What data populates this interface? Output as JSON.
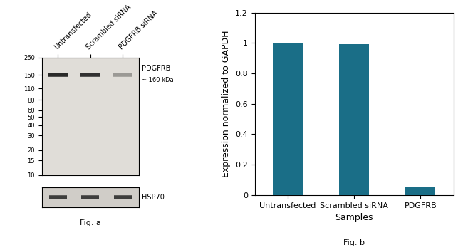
{
  "chart_data": [
    {
      "type": "blot",
      "color": "#e0ddd8",
      "categories": [
        "Untransfected",
        "Scrambled siRNA",
        "PDGFRB siRNA"
      ],
      "log": "y",
      "ylim": [
        10,
        260
      ],
      "yticks": [
        260,
        160,
        110,
        80,
        60,
        50,
        40,
        30,
        20,
        15,
        10
      ],
      "series": [
        {
          "name": "PDGFRB",
          "values": [
            160,
            160,
            160
          ],
          "colors": [
            "#2a2a29",
            "#323131",
            "#9b9995"
          ]
        }
      ],
      "annotations": [
        "~ 160 kDa"
      ]
    },
    {
      "type": "blot",
      "color": "#d0cdc8",
      "tick_labels": false,
      "series": [
        {
          "name": "HSP70",
          "colors": [
            "#3e3e3d",
            "#3e3e3d",
            "#3e3e3d"
          ]
        }
      ],
      "annotations": [
        "Fig. a"
      ]
    },
    {
      "type": "bar",
      "categories": [
        "Untransfected",
        "Scrambled siRNA",
        "PDGFRB"
      ],
      "values": [
        1.0,
        0.99,
        0.05
      ],
      "color": "#1a6e87",
      "xlabel": "Samples",
      "ylabel": "Expression normalized to GAPDH",
      "ylim": [
        0,
        1.2
      ],
      "yticks": [
        0,
        0.2,
        0.4,
        0.6,
        0.8,
        1,
        1.2
      ],
      "grid": false,
      "annotations": [
        "Fig. b"
      ]
    }
  ]
}
